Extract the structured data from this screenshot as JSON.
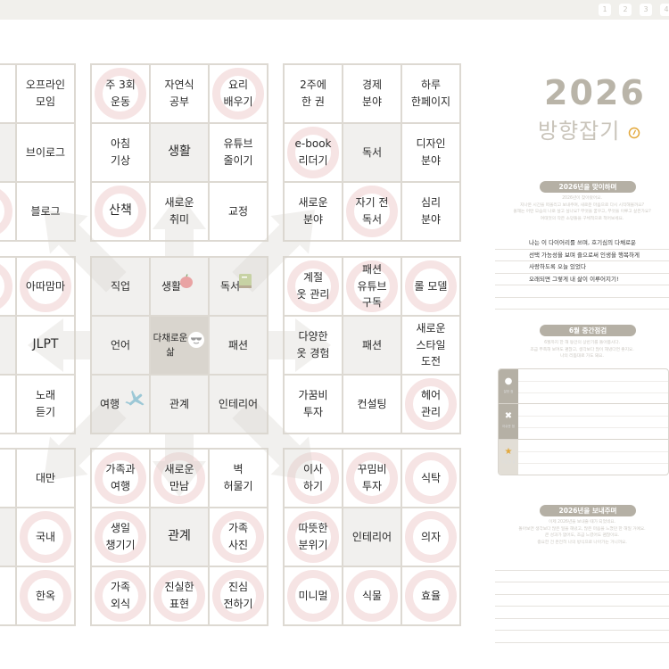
{
  "pager": [
    "1",
    "2",
    "3",
    "4"
  ],
  "grids": [
    {
      "id": "top-left",
      "cells": [
        {
          "t": ""
        },
        {
          "t": ""
        },
        {
          "t": "오프라인\n모임"
        },
        {
          "t": ""
        },
        {
          "t": "",
          "core": true
        },
        {
          "t": "브이로그"
        },
        {
          "t": ""
        },
        {
          "t": "",
          "c": true
        },
        {
          "t": "블로그"
        }
      ]
    },
    {
      "id": "top-center",
      "cells": [
        {
          "t": "주 3회\n운동",
          "c": true
        },
        {
          "t": "자연식\n공부"
        },
        {
          "t": "요리\n배우기",
          "c": true
        },
        {
          "t": "아침\n기상"
        },
        {
          "t": "생활",
          "core": true,
          "big": true
        },
        {
          "t": "유튜브\n줄이기"
        },
        {
          "t": "산책",
          "c": true,
          "big": true
        },
        {
          "t": "새로운\n취미"
        },
        {
          "t": "교정"
        }
      ]
    },
    {
      "id": "top-right",
      "cells": [
        {
          "t": "2주에\n한 권"
        },
        {
          "t": "경제\n분야"
        },
        {
          "t": "하루\n한페이지"
        },
        {
          "t": "e-book\n리더기",
          "c": true
        },
        {
          "t": "독서",
          "core": true
        },
        {
          "t": "디자인\n분야"
        },
        {
          "t": "새로운\n분야"
        },
        {
          "t": "자기 전\n독서",
          "c": true
        },
        {
          "t": "심리\n분야"
        }
      ]
    },
    {
      "id": "middle-left",
      "cells": [
        {
          "t": ""
        },
        {
          "t": "",
          "c": true
        },
        {
          "t": "아따맘마",
          "c": true
        },
        {
          "t": ""
        },
        {
          "t": "",
          "core": true
        },
        {
          "t": "JLPT",
          "big": true
        },
        {
          "t": ""
        },
        {
          "t": ""
        },
        {
          "t": "노래\n듣기"
        }
      ]
    },
    {
      "id": "center",
      "cells": [
        {
          "t": "직업"
        },
        {
          "t": "생활",
          "icon": "apple-icon"
        },
        {
          "t": "독서",
          "icon": "book-icon"
        },
        {
          "t": "언어"
        },
        {
          "t": "다채로운 삶",
          "core": true,
          "icon": "sunglasses-smile-icon"
        },
        {
          "t": "패션"
        },
        {
          "t": "여행",
          "icon": "airplane-icon"
        },
        {
          "t": "관계"
        },
        {
          "t": "인테리어"
        }
      ]
    },
    {
      "id": "middle-right",
      "cells": [
        {
          "t": "계절\n옷 관리",
          "c": true
        },
        {
          "t": "패션\n유튜브\n구독",
          "c": true
        },
        {
          "t": "롤 모델",
          "c": true
        },
        {
          "t": "다양한\n옷 경험"
        },
        {
          "t": "패션",
          "core": true
        },
        {
          "t": "새로운\n스타일\n도전"
        },
        {
          "t": "가꿈비\n투자"
        },
        {
          "t": "컨설팅"
        },
        {
          "t": "헤어\n관리",
          "c": true
        }
      ]
    },
    {
      "id": "bottom-left",
      "cells": [
        {
          "t": ""
        },
        {
          "t": ""
        },
        {
          "t": "대만"
        },
        {
          "t": ""
        },
        {
          "t": "",
          "core": true
        },
        {
          "t": "국내",
          "c": true
        },
        {
          "t": ""
        },
        {
          "t": ""
        },
        {
          "t": "한옥",
          "c": true
        }
      ]
    },
    {
      "id": "bottom-center",
      "cells": [
        {
          "t": "가족과\n여행",
          "c": true
        },
        {
          "t": "새로운\n만남",
          "c": true
        },
        {
          "t": "벽\n허물기"
        },
        {
          "t": "생일\n챙기기",
          "c": true
        },
        {
          "t": "관계",
          "core": true,
          "big": true
        },
        {
          "t": "가족\n사진",
          "c": true
        },
        {
          "t": "가족\n외식",
          "c": true
        },
        {
          "t": "진실한\n표현",
          "c": true
        },
        {
          "t": "진심\n전하기",
          "c": true
        }
      ]
    },
    {
      "id": "bottom-right",
      "cells": [
        {
          "t": "이사\n하기",
          "c": true
        },
        {
          "t": "꾸밈비\n투자",
          "c": true
        },
        {
          "t": "식탁",
          "c": true
        },
        {
          "t": "따뜻한\n분위기",
          "c": true
        },
        {
          "t": "인테리어",
          "core": true
        },
        {
          "t": "의자",
          "c": true
        },
        {
          "t": "미니멀",
          "c": true
        },
        {
          "t": "식물",
          "c": true
        },
        {
          "t": "효율",
          "c": true
        }
      ]
    }
  ],
  "side": {
    "year": "2026",
    "title": "방향잡기",
    "welcome": {
      "label": "2026년을 맞이하며",
      "text": "2026년이 찾아왔어요.\n지나온 시간을 떠올리고 보내주며, 새로운 마음으로 다시 시작해볼까요?\n올해는 어떤 모습의 나로 살고 싶나요? 무엇을 꿈꾸고, 무엇을 이루고 싶은가요?\n여태껏의 작은 소망들을 구체적으로 적어보세요.",
      "lines": [
        "나는 이 다이어리를 쓰며, 호기심의 다채로운",
        "선택 가능성을 보며 즐으로써 인생을 행복하게",
        "사랑하도록 오늘 있었다",
        "오래되면 그렇게 내 삶이 이루어지기!",
        "",
        ""
      ]
    },
    "midcheck": {
      "label": "6월 중간점검",
      "text": "6월까지 한 해 동안의 상반기를 돌아봅시다.\n조금 부족해 보여도 괜찮고, 생각보다 많이 해냈다면 좋지요.\n나의 리듬대로 가도 돼요.",
      "sections": [
        {
          "icon": "circle-icon",
          "mark": "●",
          "label": "잘한 점"
        },
        {
          "icon": "x-icon",
          "mark": "✖",
          "label": "아쉬운 점"
        },
        {
          "icon": "star-icon",
          "mark": "★",
          "label": "다짐 한 줄"
        }
      ],
      "accent": "#e3a83b"
    },
    "farewell": {
      "label": "2026년을 보내주며",
      "text": "이제 2026년을 보내줄 때가 되었네요.\n돌아보면 생각보다 많은 일을 해냈고, 많은 마음을 느꼈던 한 해일 거예요.\n큰 성과가 없어도, 조금 느렸어도 괜찮아요.\n중요한 건 온전히 나의 방식으로 나아가는 거니까요."
    }
  },
  "colors": {
    "ring": "#f6e4e4",
    "shade": "#f1f0ee",
    "core": "#d9d5ce",
    "title": "#b9b4a8"
  }
}
